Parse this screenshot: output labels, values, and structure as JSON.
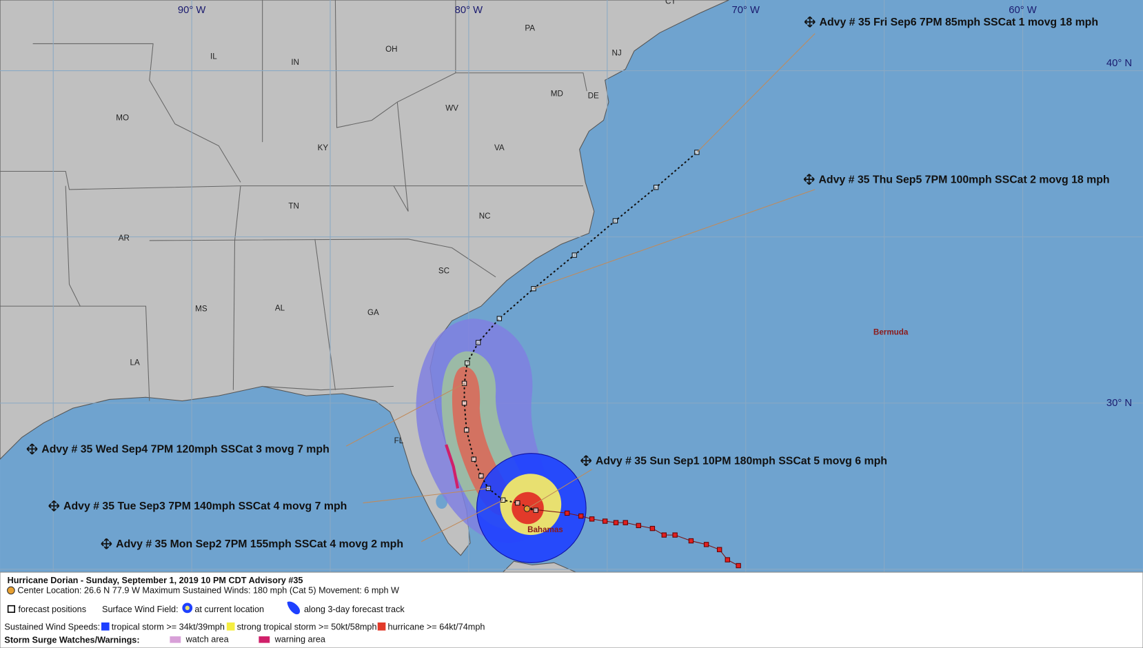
{
  "map": {
    "graticule": {
      "longitudes": [
        "90° W",
        "80° W",
        "70° W",
        "60° W"
      ],
      "latitudes": [
        "40° N",
        "30° N"
      ]
    },
    "states": [
      "CT",
      "PA",
      "NJ",
      "OH",
      "IL",
      "IN",
      "MD",
      "DE",
      "MO",
      "WV",
      "KY",
      "VA",
      "TN",
      "NC",
      "AR",
      "SC",
      "MS",
      "AL",
      "GA",
      "LA",
      "FL"
    ],
    "places": [
      "Bermuda",
      "Bahamas"
    ],
    "advisories": [
      "Advy # 35 Fri Sep6 7PM  85mph SSCat 1 movg 18 mph",
      "Advy # 35 Thu Sep5 7PM  100mph SSCat 2 movg 18 mph",
      "Advy # 35 Wed Sep4 7PM  120mph SSCat 3 movg 7 mph",
      "Advy # 35 Sun Sep1 10PM  180mph SSCat 5 movg 6 mph",
      "Advy # 35 Tue Sep3 7PM  140mph SSCat 4 movg 7 mph",
      "Advy # 35 Mon Sep2 7PM  155mph SSCat 4 movg 2 mph"
    ]
  },
  "legend": {
    "title": "Hurricane Dorian  -  Sunday, September 1, 2019  10 PM CDT   Advisory #35",
    "center": "Center Location: 26.6 N  77.9 W   Maximum Sustained Winds: 180 mph (Cat 5) Movement: 6 mph W",
    "forecast": "forecast positions",
    "wind_field": "Surface Wind Field:",
    "current": "at current location",
    "track": "along 3-day forecast track",
    "speeds_label": "Sustained Wind Speeds:",
    "ts": "tropical storm >= 34kt/39mph",
    "sts": "strong tropical storm >= 50kt/58mph",
    "hu": "hurricane >= 64kt/74mph",
    "surge_label": "Storm Surge Watches/Warnings:",
    "watch": "watch area",
    "warning": "warning area"
  }
}
